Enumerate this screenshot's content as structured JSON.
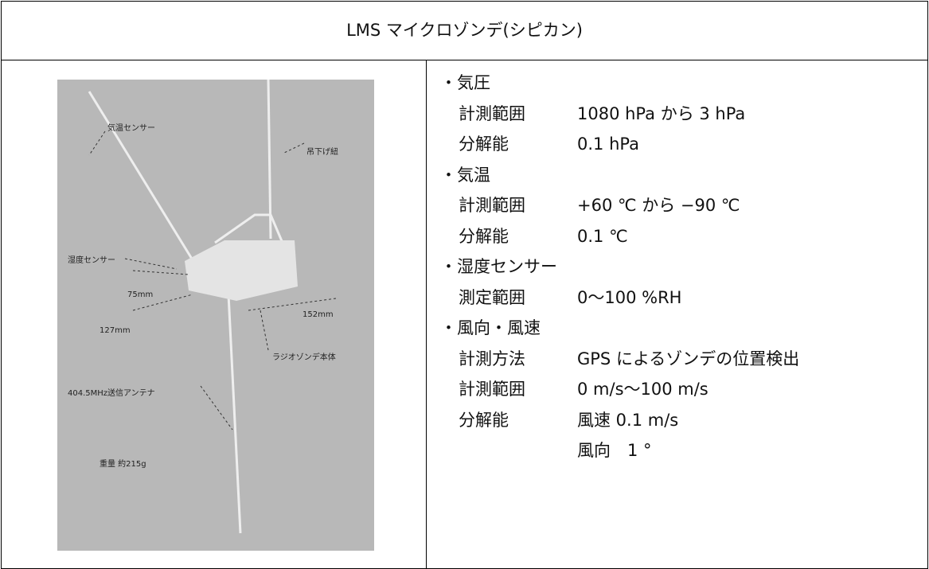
{
  "header": {
    "title": "LMS マイクロゾンデ(シピカン)"
  },
  "photo": {
    "labels": [
      "気温センサー",
      "吊下げ紐",
      "湿度センサー",
      "75mm",
      "127mm",
      "152mm",
      "ラジオゾンデ本体",
      "404.5MHz送信アンテナ",
      "重量 約215g"
    ]
  },
  "specs": [
    {
      "heading": "・気圧",
      "items": [
        {
          "label": "計測範囲",
          "value": "1080 hPa から 3 hPa"
        },
        {
          "label": "分解能",
          "value": "0.1 hPa"
        }
      ]
    },
    {
      "heading": "・気温",
      "items": [
        {
          "label": "計測範囲",
          "value": "+60 ℃ から −90 ℃"
        },
        {
          "label": "分解能",
          "value": "0.1 ℃"
        }
      ]
    },
    {
      "heading": "・湿度センサー",
      "items": [
        {
          "label": "測定範囲",
          "value": "0～100 %RH"
        }
      ]
    },
    {
      "heading": "・風向・風速",
      "items": [
        {
          "label": "計測方法",
          "value": "GPS によるゾンデの位置検出"
        },
        {
          "label": "計測範囲",
          "value": "0 m/s～100 m/s"
        },
        {
          "label": "分解能",
          "value": "風速 0.1 m/s"
        },
        {
          "value": "風向　1 °"
        }
      ]
    }
  ]
}
